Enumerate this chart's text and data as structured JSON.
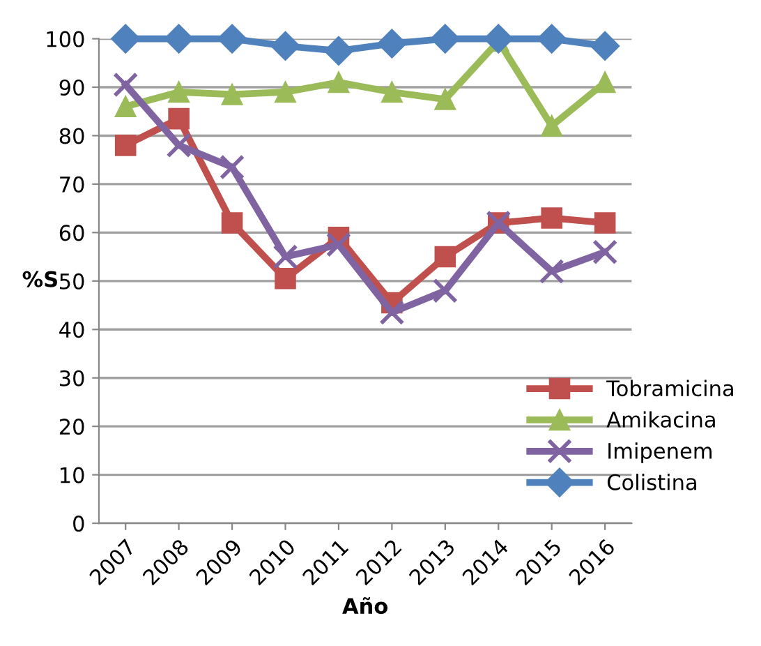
{
  "chart_data": {
    "type": "line",
    "xlabel": "Año",
    "ylabel": "%S",
    "categories": [
      "2007",
      "2008",
      "2009",
      "2010",
      "2011",
      "2012",
      "2013",
      "2014",
      "2015",
      "2016"
    ],
    "series": [
      {
        "name": "Tobramicina",
        "color": "#c0504d",
        "marker": "square",
        "values": [
          78,
          83.5,
          62,
          50.5,
          59,
          45.5,
          55,
          62,
          63,
          62
        ]
      },
      {
        "name": "Amikacina",
        "color": "#9bbb59",
        "marker": "triangle",
        "values": [
          86,
          89,
          88.5,
          89,
          91,
          89,
          87.5,
          99.5,
          82,
          91
        ]
      },
      {
        "name": "Imipenem",
        "color": "#8064a2",
        "marker": "cross",
        "values": [
          90.5,
          78,
          73.5,
          55,
          57.5,
          43.5,
          48,
          62,
          52,
          56
        ]
      },
      {
        "name": "Colistina",
        "color": "#4f81bd",
        "marker": "diamond",
        "values": [
          100,
          100,
          100,
          98.5,
          97.5,
          99,
          100,
          100,
          100,
          98.5
        ]
      }
    ],
    "ylim": [
      0,
      100
    ],
    "yticks": [
      0,
      10,
      20,
      30,
      40,
      50,
      60,
      70,
      80,
      90,
      100
    ],
    "grid": "y",
    "legend": "bottom right",
    "line_style": "solid"
  }
}
